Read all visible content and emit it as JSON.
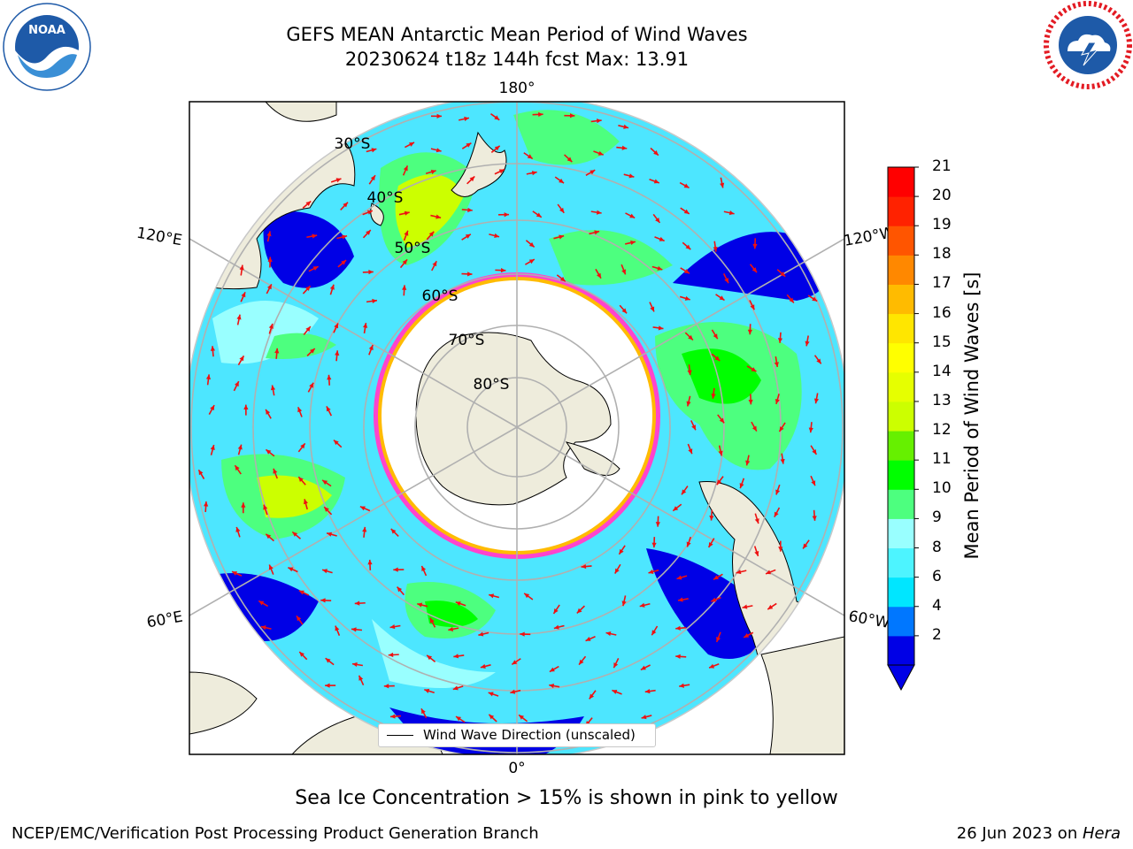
{
  "header": {
    "title_line1": "GEFS MEAN Antarctic Mean Period of Wind Waves",
    "title_line2": "20230624 t18z 144h fcst   Max: 13.91"
  },
  "logos": {
    "noaa": {
      "label": "NOAA",
      "primary_color": "#1e5aa8"
    },
    "nws": {
      "primary_color": "#1e5aa8",
      "ring_text_color": "#e31b23"
    }
  },
  "map": {
    "projection": "south-polar-stereographic",
    "longitude_labels": {
      "top": "180°",
      "bottom": "0°",
      "left_upper": "120°E",
      "left_lower": "60°E",
      "right_upper": "120°W",
      "right_lower": "60°W"
    },
    "latitude_labels": [
      "30°S",
      "40°S",
      "50°S",
      "60°S",
      "70°S",
      "80°S"
    ],
    "colors": {
      "land": "#eeecdc",
      "ocean_base": "#4de6ff",
      "sea_ice_edge": "#ff44cc",
      "arrow": "#ee1111"
    },
    "legend_label": "Wind Wave Direction (unscaled)"
  },
  "colorbar": {
    "label": "Mean Period of Wind Waves [s]",
    "ticks": [
      "21",
      "20",
      "19",
      "18",
      "17",
      "16",
      "15",
      "14",
      "13",
      "12",
      "11",
      "10",
      "9",
      "8",
      "6",
      "4",
      "2"
    ],
    "colors": [
      "#0000e6",
      "#0077ff",
      "#00e6ff",
      "#4df4ff",
      "#99ffff",
      "#4dff7f",
      "#00ff00",
      "#66f000",
      "#ccff00",
      "#e6ff00",
      "#ffff00",
      "#ffe600",
      "#ffbb00",
      "#ff8800",
      "#ff5500",
      "#ff2200",
      "#ff0000"
    ]
  },
  "footer": {
    "note": "Sea Ice Concentration > 15% is shown in pink to yellow",
    "left": "NCEP/EMC/Verification Post Processing Product Generation Branch",
    "right_date": "26 Jun 2023 on ",
    "right_machine": "Hera"
  }
}
